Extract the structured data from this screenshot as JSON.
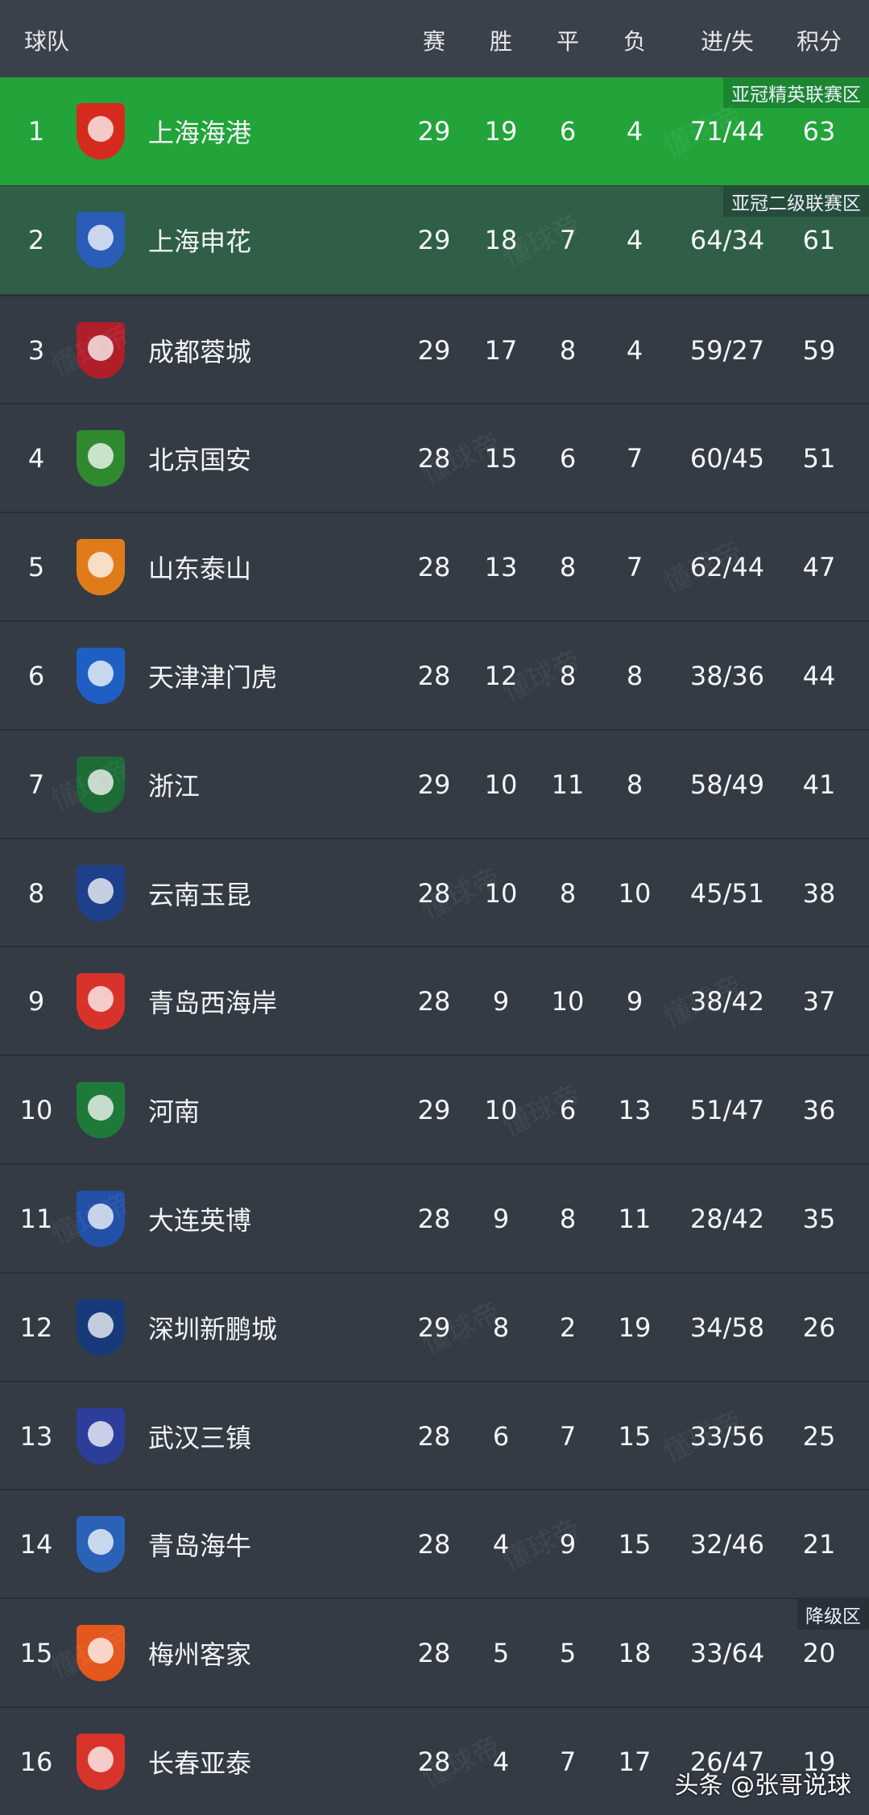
{
  "header": {
    "team": "球队",
    "played": "赛",
    "won": "胜",
    "drawn": "平",
    "lost": "负",
    "goals": "进/失",
    "points": "积分"
  },
  "zones": {
    "z1": "亚冠精英联赛区",
    "z2": "亚冠二级联赛区",
    "relegation": "降级区"
  },
  "zone_colors": {
    "z1": "#22a43a",
    "z2": "#2f5f46",
    "default": "#343b45"
  },
  "rows": [
    {
      "rank": "1",
      "team": "上海海港",
      "p": "29",
      "w": "19",
      "d": "6",
      "l": "4",
      "gf_ga": "71/44",
      "pts": "63",
      "logo_color": "#d52b1e"
    },
    {
      "rank": "2",
      "team": "上海申花",
      "p": "29",
      "w": "18",
      "d": "7",
      "l": "4",
      "gf_ga": "64/34",
      "pts": "61",
      "logo_color": "#2a5cb8"
    },
    {
      "rank": "3",
      "team": "成都蓉城",
      "p": "29",
      "w": "17",
      "d": "8",
      "l": "4",
      "gf_ga": "59/27",
      "pts": "59",
      "logo_color": "#b01e2a"
    },
    {
      "rank": "4",
      "team": "北京国安",
      "p": "28",
      "w": "15",
      "d": "6",
      "l": "7",
      "gf_ga": "60/45",
      "pts": "51",
      "logo_color": "#2f8a2f"
    },
    {
      "rank": "5",
      "team": "山东泰山",
      "p": "28",
      "w": "13",
      "d": "8",
      "l": "7",
      "gf_ga": "62/44",
      "pts": "47",
      "logo_color": "#e07b1a"
    },
    {
      "rank": "6",
      "team": "天津津门虎",
      "p": "28",
      "w": "12",
      "d": "8",
      "l": "8",
      "gf_ga": "38/36",
      "pts": "44",
      "logo_color": "#1f5fc4"
    },
    {
      "rank": "7",
      "team": "浙江",
      "p": "29",
      "w": "10",
      "d": "11",
      "l": "8",
      "gf_ga": "58/49",
      "pts": "41",
      "logo_color": "#1d6b35"
    },
    {
      "rank": "8",
      "team": "云南玉昆",
      "p": "28",
      "w": "10",
      "d": "8",
      "l": "10",
      "gf_ga": "45/51",
      "pts": "38",
      "logo_color": "#1e3f8a"
    },
    {
      "rank": "9",
      "team": "青岛西海岸",
      "p": "28",
      "w": "9",
      "d": "10",
      "l": "9",
      "gf_ga": "38/42",
      "pts": "37",
      "logo_color": "#d8332a"
    },
    {
      "rank": "10",
      "team": "河南",
      "p": "29",
      "w": "10",
      "d": "6",
      "l": "13",
      "gf_ga": "51/47",
      "pts": "36",
      "logo_color": "#1f7a3a"
    },
    {
      "rank": "11",
      "team": "大连英博",
      "p": "28",
      "w": "9",
      "d": "8",
      "l": "11",
      "gf_ga": "28/42",
      "pts": "35",
      "logo_color": "#2250a8"
    },
    {
      "rank": "12",
      "team": "深圳新鹏城",
      "p": "29",
      "w": "8",
      "d": "2",
      "l": "19",
      "gf_ga": "34/58",
      "pts": "26",
      "logo_color": "#173a7a"
    },
    {
      "rank": "13",
      "team": "武汉三镇",
      "p": "28",
      "w": "6",
      "d": "7",
      "l": "15",
      "gf_ga": "33/56",
      "pts": "25",
      "logo_color": "#2d3e9a"
    },
    {
      "rank": "14",
      "team": "青岛海牛",
      "p": "28",
      "w": "4",
      "d": "9",
      "l": "15",
      "gf_ga": "32/46",
      "pts": "21",
      "logo_color": "#2a62b8"
    },
    {
      "rank": "15",
      "team": "梅州客家",
      "p": "28",
      "w": "5",
      "d": "5",
      "l": "18",
      "gf_ga": "33/64",
      "pts": "20",
      "logo_color": "#e4571d"
    },
    {
      "rank": "16",
      "team": "长春亚泰",
      "p": "28",
      "w": "4",
      "d": "7",
      "l": "17",
      "gf_ga": "26/47",
      "pts": "19",
      "logo_color": "#d8342c"
    }
  ],
  "watermark": "懂球帝",
  "footer": "头条 @张哥说球"
}
